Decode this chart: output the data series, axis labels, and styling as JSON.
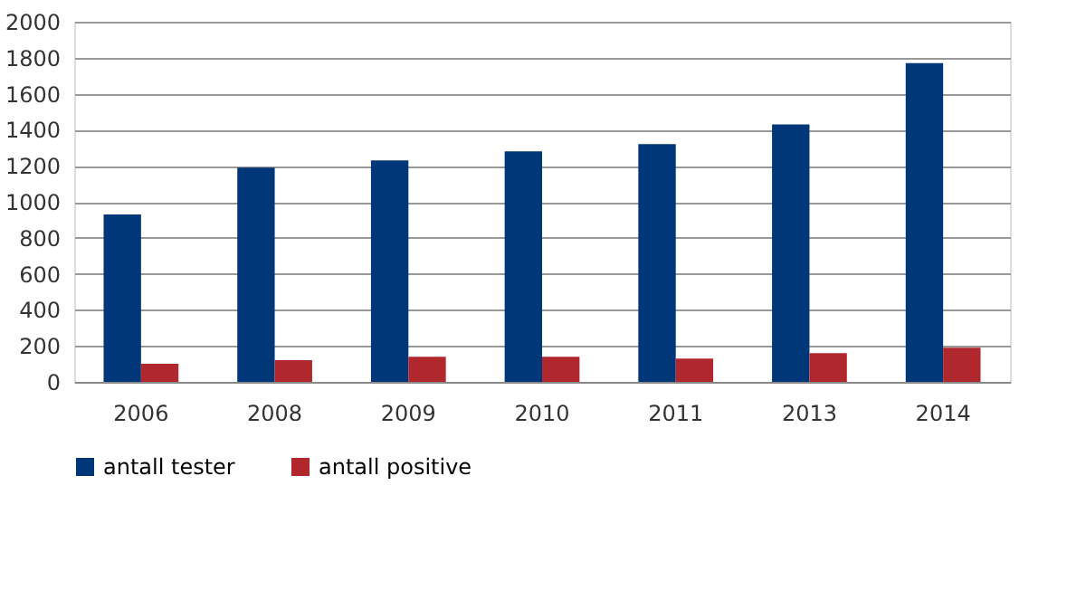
{
  "chart_data": {
    "type": "bar",
    "categories": [
      "2006",
      "2008",
      "2009",
      "2010",
      "2011",
      "2013",
      "2014"
    ],
    "series": [
      {
        "name": "antall tester",
        "color": "#003778",
        "values": [
          930,
          1190,
          1230,
          1280,
          1320,
          1430,
          1770
        ]
      },
      {
        "name": "antall positive",
        "color": "#b0272d",
        "values": [
          100,
          120,
          140,
          140,
          130,
          160,
          190
        ]
      }
    ],
    "ylim": [
      0,
      2000
    ],
    "yticks": [
      0,
      200,
      400,
      600,
      800,
      1000,
      1200,
      1400,
      1600,
      1800,
      2000
    ],
    "grid": "y",
    "legend": "bottom"
  }
}
